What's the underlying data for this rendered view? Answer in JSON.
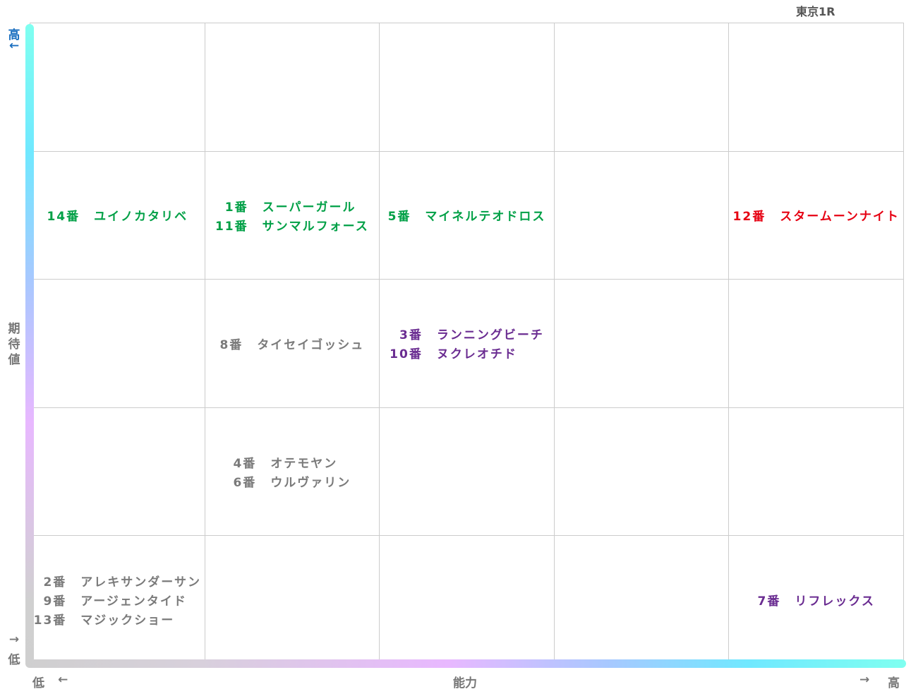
{
  "header": {
    "title": "東京1R"
  },
  "y_axis": {
    "label": "期待値",
    "high": "高",
    "high_arrow": "←",
    "low_arrow": "→",
    "low": "低"
  },
  "x_axis": {
    "label": "能力",
    "low": "低",
    "low_arrow": "←",
    "high_arrow": "→",
    "high": "高"
  },
  "grid": {
    "rows": [
      [
        [],
        [],
        [],
        [],
        []
      ],
      [
        [
          {
            "number": "14番",
            "name": "ユイノカタリベ",
            "color": "#00a046"
          }
        ],
        [
          {
            "number": "1番",
            "name": "スーパーガール",
            "color": "#00a046"
          },
          {
            "number": "11番",
            "name": "サンマルフォース",
            "color": "#00a046"
          }
        ],
        [
          {
            "number": "5番",
            "name": "マイネルテオドロス",
            "color": "#00a046"
          }
        ],
        [],
        [
          {
            "number": "12番",
            "name": "スタームーンナイト",
            "color": "#e60012"
          }
        ]
      ],
      [
        [],
        [
          {
            "number": "8番",
            "name": "タイセイゴッシュ",
            "color": "#7a7a7a"
          }
        ],
        [
          {
            "number": "3番",
            "name": "ランニングビーチ",
            "color": "#6a2c91"
          },
          {
            "number": "10番",
            "name": "ヌクレオチド",
            "color": "#6a2c91"
          }
        ],
        [],
        []
      ],
      [
        [],
        [
          {
            "number": "4番",
            "name": "オテモヤン",
            "color": "#7a7a7a"
          },
          {
            "number": "6番",
            "name": "ウルヴァリン",
            "color": "#7a7a7a"
          }
        ],
        [],
        [],
        []
      ],
      [
        [
          {
            "number": "2番",
            "name": "アレキサンダーサン",
            "color": "#7a7a7a"
          },
          {
            "number": "9番",
            "name": "アージェンタイド",
            "color": "#7a7a7a"
          },
          {
            "number": "13番",
            "name": "マジックショー",
            "color": "#7a7a7a"
          }
        ],
        [],
        [],
        [],
        [
          {
            "number": "7番",
            "name": "リフレックス",
            "color": "#6a2c91"
          }
        ]
      ]
    ]
  }
}
